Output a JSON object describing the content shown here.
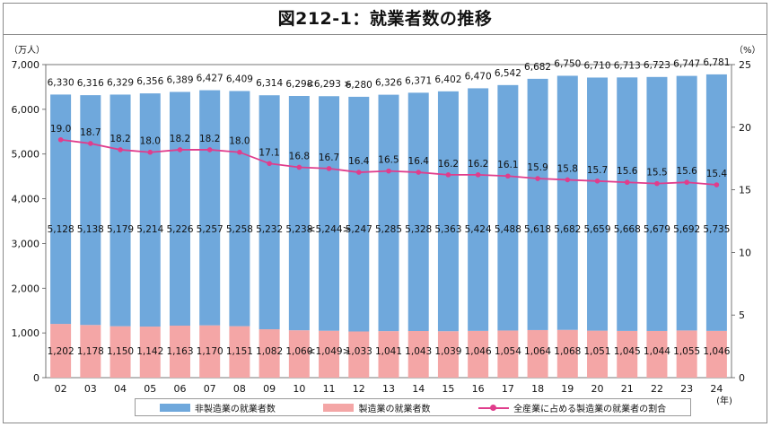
{
  "title": "図212-1：就業者数の推移",
  "chart_data": {
    "type": "bar",
    "stacked": true,
    "categories": [
      "02",
      "03",
      "04",
      "05",
      "06",
      "07",
      "08",
      "09",
      "10",
      "11",
      "12",
      "13",
      "14",
      "15",
      "16",
      "17",
      "18",
      "19",
      "20",
      "21",
      "22",
      "23",
      "24"
    ],
    "series": [
      {
        "name": "製造業の就業者数",
        "color": "#f4a6a6",
        "values": [
          1202,
          1178,
          1150,
          1142,
          1163,
          1170,
          1151,
          1082,
          1060,
          1049,
          1033,
          1041,
          1043,
          1039,
          1046,
          1054,
          1064,
          1068,
          1051,
          1045,
          1044,
          1055,
          1046
        ],
        "labels": [
          "1,202",
          "1,178",
          "1,150",
          "1,142",
          "1,163",
          "1,170",
          "1,151",
          "1,082",
          "1,060",
          "<1,049>",
          "1,033",
          "1,041",
          "1,043",
          "1,039",
          "1,046",
          "1,054",
          "1,064",
          "1,068",
          "1,051",
          "1,045",
          "1,044",
          "1,055",
          "1,046"
        ]
      },
      {
        "name": "非製造業の就業者数",
        "color": "#6fa8dc",
        "values": [
          5128,
          5138,
          5179,
          5214,
          5226,
          5257,
          5258,
          5232,
          5238,
          5244,
          5247,
          5285,
          5328,
          5363,
          5424,
          5488,
          5618,
          5682,
          5659,
          5668,
          5679,
          5692,
          5735
        ],
        "labels": [
          "5,128",
          "5,138",
          "5,179",
          "5,214",
          "5,226",
          "5,257",
          "5,258",
          "5,232",
          "5,238",
          "<5,244>",
          "5,247",
          "5,285",
          "5,328",
          "5,363",
          "5,424",
          "5,488",
          "5,618",
          "5,682",
          "5,659",
          "5,668",
          "5,679",
          "5,692",
          "5,735"
        ]
      }
    ],
    "totals": {
      "values": [
        6330,
        6316,
        6329,
        6356,
        6389,
        6427,
        6409,
        6314,
        6298,
        6293,
        6280,
        6326,
        6371,
        6402,
        6470,
        6542,
        6682,
        6750,
        6710,
        6713,
        6723,
        6747,
        6781
      ],
      "labels": [
        "6,330",
        "6,316",
        "6,329",
        "6,356",
        "6,389",
        "6,427",
        "6,409",
        "6,314",
        "6,298",
        "<6,293 >",
        "6,280",
        "6,326",
        "6,371",
        "6,402",
        "6,470",
        "6,542",
        "6,682",
        "6,750",
        "6,710",
        "6,713",
        "6,723",
        "6,747",
        "6,781"
      ]
    },
    "line_series": {
      "name": "全産業に占める製造業の就業者の割合",
      "color": "#e03d8c",
      "axis": "right",
      "values": [
        19.0,
        18.7,
        18.2,
        18.0,
        18.2,
        18.2,
        18.0,
        17.1,
        16.8,
        16.7,
        16.4,
        16.5,
        16.4,
        16.2,
        16.2,
        16.1,
        15.9,
        15.8,
        15.7,
        15.6,
        15.5,
        15.6,
        15.4
      ],
      "labels": [
        "19.0",
        "18.7",
        "18.2",
        "18.0",
        "18.2",
        "18.2",
        "18.0",
        "17.1",
        "16.8",
        "16.7",
        "16.4",
        "16.5",
        "16.4",
        "16.2",
        "16.2",
        "16.1",
        "15.9",
        "15.8",
        "15.7",
        "15.6",
        "15.5",
        "15.6",
        "15.4"
      ]
    },
    "y_left": {
      "unit": "（万人）",
      "ylim": [
        0,
        7000
      ],
      "ticks": [
        0,
        1000,
        2000,
        3000,
        4000,
        5000,
        6000,
        7000
      ],
      "tick_labels": [
        "0",
        "1,000",
        "2,000",
        "3,000",
        "4,000",
        "5,000",
        "6,000",
        "7,000"
      ]
    },
    "y_right": {
      "unit": "（%）",
      "ylim": [
        0,
        25
      ],
      "ticks": [
        0,
        5,
        10,
        15,
        20,
        25
      ],
      "tick_labels": [
        "0",
        "5",
        "10",
        "15",
        "20",
        "25"
      ]
    },
    "x_unit": "(年)",
    "legend_position": "bottom"
  }
}
